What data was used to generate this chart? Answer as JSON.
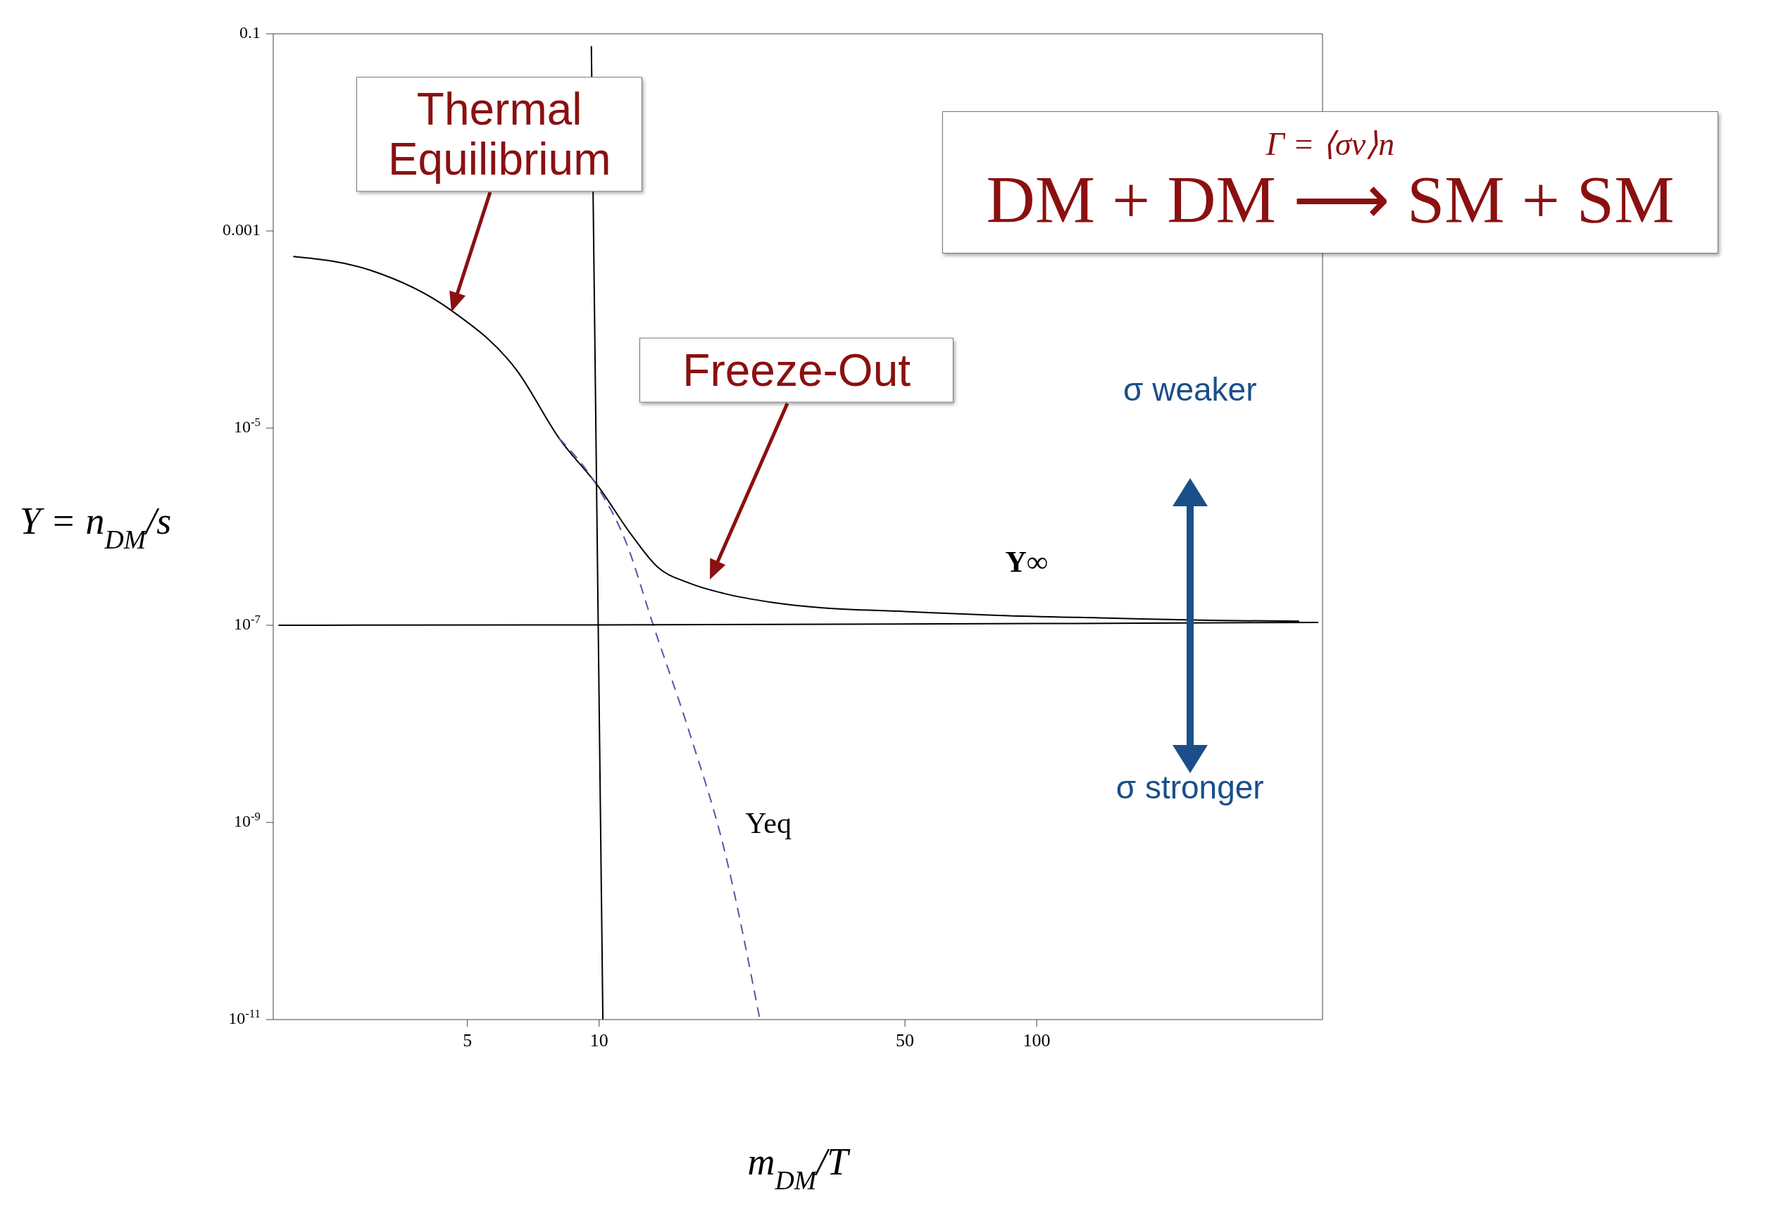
{
  "chart_data": {
    "type": "line",
    "xlabel": "m$_{DM}$/T",
    "ylabel": "Y = n$_{DM}$/s",
    "log": "xy",
    "marker": "none",
    "xlim": [
      1.8,
      450
    ],
    "xticks": [
      5,
      10,
      50,
      100
    ],
    "ylim": [
      1e-11,
      0.1
    ],
    "yticks": [
      0.1,
      0.001,
      {
        "value": 1e-05,
        "label": "10$^{-5}$"
      },
      {
        "value": 1e-07,
        "label": "10$^{-7}$"
      },
      {
        "value": 1e-09,
        "label": "10$^{-9}$"
      },
      {
        "value": 1e-11,
        "label": "10$^{-11}$"
      }
    ],
    "series": [
      {
        "color": "#000000",
        "line_style": "solid",
        "x": [
          2.0,
          3.0,
          4.56,
          6.5,
          8.1,
          10,
          11.8,
          13.6,
          16,
          19.3,
          25,
          32.4,
          50,
          81.7,
          150,
          250,
          398
        ],
        "values": [
          0.00055,
          0.0004,
          0.00016,
          3.8e-05,
          7.9e-06,
          2.5e-06,
          8.5e-07,
          3.9e-07,
          2.7e-07,
          2.1e-07,
          1.7e-07,
          1.5e-07,
          1.38e-07,
          1.26e-07,
          1.18e-07,
          1.12e-07,
          1.1e-07
        ]
      },
      {
        "color": "#5555aa",
        "line_style": "dashed",
        "x": [
          8.1,
          10,
          11.5,
          13.3,
          16.2,
          19.3,
          23.3
        ],
        "values": [
          7.9e-06,
          2.4e-06,
          7.1e-07,
          1e-07,
          7.4e-09,
          5.4e-10,
          1e-11
        ]
      },
      {
        "color": "#000000",
        "line_style": "solid",
        "x": [
          1.85,
          10,
          100,
          440
        ],
        "values": [
          1e-07,
          1.01e-07,
          1.04e-07,
          1.07e-07
        ]
      },
      {
        "color": "#000000",
        "line_style": "solid",
        "x": [
          9.6,
          10.2
        ],
        "values": [
          0.075,
          1e-11
        ]
      }
    ],
    "annotations": [
      {
        "text": "Thermal Equilibrium",
        "x": 4.6,
        "y": 0.00015
      },
      "Freeze-Out",
      "Γ = ⟨σv⟩n",
      "DM + DM ⟶ SM + SM",
      "Y∞",
      "Yeq",
      "σ weaker",
      "σ stronger"
    ]
  }
}
